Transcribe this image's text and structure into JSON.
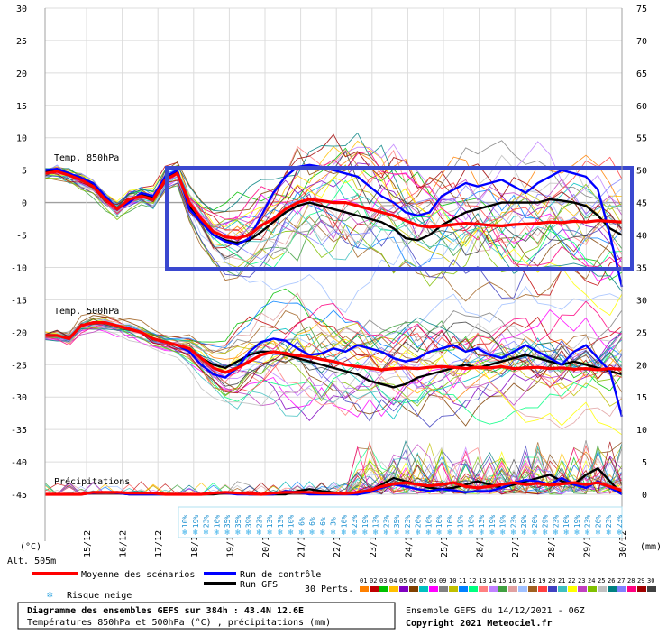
{
  "chart_data": {
    "type": "line",
    "left_axis": {
      "label": "(°C)",
      "ticks": [
        30,
        25,
        20,
        15,
        10,
        5,
        0,
        -5,
        -10,
        -15,
        -20,
        -25,
        -30,
        -35,
        -40,
        -45
      ],
      "ylim": [
        -45,
        30
      ]
    },
    "right_axis": {
      "label": "(mm)",
      "ticks": [
        75,
        70,
        65,
        60,
        55,
        50,
        45,
        40,
        35,
        30,
        25,
        20,
        15,
        10,
        5,
        0
      ],
      "ylim": [
        0,
        75
      ]
    },
    "x_ticks": [
      "15/12",
      "16/12",
      "17/12",
      "18/12",
      "19/12",
      "20/12",
      "21/12",
      "22/12",
      "23/12",
      "24/12",
      "25/12",
      "26/12",
      "27/12",
      "28/12",
      "29/12",
      "30/12"
    ],
    "sections": {
      "t850": "Temp. 850hPa",
      "t500": "Temp. 500hPa",
      "precip": "Précipitations"
    },
    "snow_risk": {
      "steps": [
        "10%",
        "19%",
        "23%",
        "16%",
        "35%",
        "35%",
        "39%",
        "23%",
        "13%",
        "13%",
        "10%",
        "6%",
        "6%",
        "6%",
        "3%",
        "10%",
        "23%",
        "19%",
        "13%",
        "23%",
        "35%",
        "23%",
        "26%",
        "16%",
        "16%",
        "16%",
        "19%",
        "16%",
        "13%",
        "19%",
        "19%",
        "23%",
        "29%",
        "26%",
        "29%",
        "23%",
        "16%",
        "19%",
        "23%",
        "26%",
        "23%",
        "23%"
      ]
    },
    "series": [
      {
        "name": "Moyenne des scénarios",
        "color": "#ff0000",
        "t850": [
          4.5,
          4.8,
          4.2,
          3.5,
          2.5,
          0.5,
          -1,
          0.5,
          1,
          0.5,
          3.5,
          4.5,
          0,
          -2.5,
          -4.5,
          -5.3,
          -5.5,
          -5,
          -3.5,
          -2.5,
          -1,
          0,
          0.5,
          0.3,
          0,
          0,
          -0.5,
          -1,
          -1.5,
          -2,
          -2.8,
          -3.5,
          -3.8,
          -3.6,
          -3.4,
          -3.2,
          -3.3,
          -3.5,
          -3.6,
          -3.4,
          -3.3,
          -3.2,
          -3,
          -3.1,
          -2.9,
          -3,
          -2.8,
          -2.9,
          -3
        ],
        "t500": [
          -20.5,
          -20.5,
          -21,
          -19,
          -18.5,
          -18.5,
          -19,
          -19.5,
          -20,
          -21,
          -21.5,
          -22,
          -22.5,
          -24,
          -25.5,
          -26.2,
          -25.5,
          -24.5,
          -23.5,
          -23,
          -23.3,
          -23.6,
          -23.8,
          -24.2,
          -24.5,
          -25,
          -25.3,
          -25.5,
          -25.8,
          -25.6,
          -25.5,
          -25.6,
          -25.4,
          -25.3,
          -25.4,
          -25.6,
          -25.4,
          -25.5,
          -25.3,
          -25.6,
          -25.5,
          -25.4,
          -25.6,
          -25.5,
          -25.7,
          -25.6,
          -25.8,
          -25.6,
          -25.7
        ],
        "precip": [
          0,
          0,
          0,
          0,
          0.3,
          0.3,
          0.3,
          0.2,
          0.2,
          0.2,
          0,
          0,
          0,
          0,
          0.2,
          0.3,
          0.2,
          0.1,
          0,
          0.2,
          0.3,
          0.3,
          0.3,
          0.2,
          0.2,
          0.1,
          0.3,
          0.6,
          1.2,
          1.6,
          1.8,
          1.5,
          1.3,
          1.5,
          1.8,
          1.2,
          1,
          1.2,
          1.5,
          1.8,
          1.5,
          1.7,
          1.4,
          1.6,
          1.8,
          1.5,
          1.8,
          1.2,
          0.6
        ]
      },
      {
        "name": "Run de contrôle",
        "color": "#0000ff",
        "t850": [
          5,
          5.2,
          4.5,
          3.8,
          3,
          1,
          -1,
          0,
          1.5,
          1,
          4,
          5,
          -1,
          -3,
          -5,
          -6,
          -6.5,
          -5.5,
          -2,
          1.5,
          4,
          5.5,
          5.8,
          5.5,
          5,
          4.5,
          4,
          2.5,
          1,
          0,
          -1.5,
          -2,
          -1.5,
          1,
          2,
          3,
          2.5,
          3,
          3.5,
          2.5,
          1.5,
          3,
          4,
          5,
          4.5,
          4,
          2,
          -5,
          -13
        ],
        "t500": [
          -20.5,
          -20.5,
          -21,
          -19,
          -18.5,
          -18.5,
          -19,
          -19.5,
          -20,
          -21,
          -21.5,
          -22,
          -23,
          -25,
          -26.5,
          -27,
          -25.5,
          -23,
          -21.5,
          -21,
          -21.3,
          -22.5,
          -23.5,
          -23.3,
          -22.5,
          -23,
          -22,
          -22.5,
          -23,
          -24,
          -24.5,
          -24,
          -23,
          -22.5,
          -22,
          -23,
          -22.5,
          -23.5,
          -24,
          -23,
          -22,
          -23,
          -24,
          -25,
          -23,
          -22,
          -24,
          -26,
          -33
        ],
        "precip": [
          0,
          0,
          0,
          0,
          0.2,
          0.3,
          0.2,
          0,
          0,
          0,
          0,
          0,
          0,
          0,
          0.2,
          0.2,
          0,
          0,
          0,
          0,
          0.5,
          0.3,
          0,
          0,
          0,
          0,
          0,
          0.3,
          1,
          1.5,
          1.2,
          0.8,
          0.5,
          0.8,
          0.6,
          0.3,
          0.5,
          0.5,
          1,
          1.8,
          2.2,
          2,
          1.5,
          2.5,
          1.5,
          1,
          2,
          1,
          0
        ]
      },
      {
        "name": "Run GFS",
        "color": "#000000",
        "t850": [
          4.8,
          5,
          4.3,
          3.6,
          2.8,
          0.8,
          -1,
          0.3,
          1.2,
          0.8,
          3.8,
          4.8,
          -0.5,
          -3,
          -5,
          -5.8,
          -6.2,
          -5.8,
          -4.5,
          -3,
          -1.5,
          -0.5,
          0,
          -0.5,
          -1,
          -1.5,
          -2,
          -2.5,
          -3,
          -4,
          -5.5,
          -5.8,
          -5,
          -3.5,
          -2.5,
          -1.5,
          -1,
          -0.5,
          0,
          0,
          0,
          0,
          0.5,
          0.3,
          0,
          -0.5,
          -2,
          -4,
          -5
        ],
        "t500": [
          -20.5,
          -20.5,
          -21,
          -19,
          -18.5,
          -18.5,
          -19,
          -19.5,
          -20,
          -21,
          -21.5,
          -22,
          -22.5,
          -24,
          -25,
          -25.5,
          -24.5,
          -23.5,
          -23,
          -23,
          -23.5,
          -24,
          -24.5,
          -25,
          -25.5,
          -26,
          -26.5,
          -27.5,
          -28,
          -28.5,
          -28,
          -27,
          -26.5,
          -26,
          -25.5,
          -25,
          -25.5,
          -25,
          -24.5,
          -24,
          -23.5,
          -24,
          -24.5,
          -25,
          -24.5,
          -25,
          -25.5,
          -26,
          -26.5
        ],
        "precip": [
          0,
          0,
          0,
          0,
          0.2,
          0.3,
          0.2,
          0,
          0,
          0,
          0,
          0,
          0,
          0,
          0,
          0.2,
          0.2,
          0,
          0,
          0,
          0,
          0.5,
          0.8,
          0.5,
          0.3,
          0.2,
          0,
          0.5,
          1.5,
          2.5,
          2,
          1.5,
          1,
          0.8,
          1,
          1.5,
          2,
          1.5,
          1,
          1.5,
          2,
          2.5,
          3,
          2,
          1.5,
          3,
          4,
          2,
          0
        ]
      }
    ],
    "perturbation_palette": [
      "#ff8000",
      "#c00000",
      "#00c000",
      "#ffc000",
      "#8000c0",
      "#804000",
      "#00c0c0",
      "#ff00ff",
      "#808080",
      "#c0c000",
      "#0080ff",
      "#00ff80",
      "#ff8080",
      "#c080ff",
      "#40a040",
      "#e0a0a0",
      "#a0c0ff",
      "#a06020",
      "#ff4040",
      "#4040c0",
      "#40c0c0",
      "#ffff00",
      "#c040c0",
      "#80c000",
      "#c0c0c0",
      "#008080",
      "#8080ff",
      "#ff0080",
      "#a00000",
      "#404040"
    ],
    "frame_annotation": {
      "color": "#3a48cf"
    }
  },
  "footer": {
    "alt_label": "Alt. 505m",
    "legend": {
      "mean": "Moyenne des scénarios",
      "control": "Run de contrôle",
      "gfs": "Run GFS",
      "snow": "Risque neige",
      "perts_label": "30 Perts.",
      "perts_numbers": [
        "01",
        "02",
        "03",
        "04",
        "05",
        "06",
        "07",
        "08",
        "09",
        "10",
        "11",
        "12",
        "13",
        "14",
        "15",
        "16",
        "17",
        "18",
        "19",
        "20",
        "21",
        "22",
        "23",
        "24",
        "25",
        "26",
        "27",
        "28",
        "29",
        "30"
      ]
    },
    "box_line1": "Diagramme des ensembles GEFS sur 384h : 43.4N 12.6E",
    "box_line2": "Températures 850hPa et 500hPa (°C) , précipitations (mm)",
    "right_line1": "Ensemble GEFS du 14/12/2021 - 06Z",
    "right_line2": "Copyright 2021 Meteociel.fr"
  }
}
